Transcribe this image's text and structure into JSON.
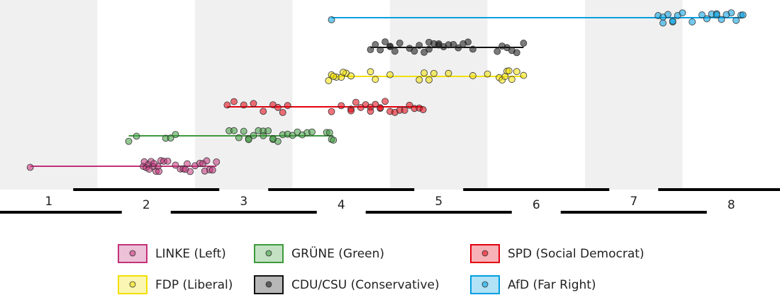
{
  "chart_data": {
    "type": "beeswarm",
    "xlim": [
      0.5,
      8.5
    ],
    "xticks": [
      1,
      2,
      3,
      4,
      5,
      6,
      7,
      8
    ],
    "series": [
      {
        "name": "LINKE (Left)",
        "color": "#c2317a",
        "values": [
          0.81,
          1.97,
          2.0,
          2.02,
          2.05,
          2.07,
          2.1,
          2.12,
          2.15,
          2.18,
          2.22,
          2.3,
          2.35,
          2.38,
          2.42,
          2.45,
          2.5,
          2.55,
          2.58,
          2.62,
          2.65,
          2.68,
          2.72,
          1.98,
          2.03,
          2.08,
          2.13,
          2.4,
          2.6
        ]
      },
      {
        "name": "GRÜNE (Green)",
        "color": "#3c9a3c",
        "values": [
          1.82,
          1.9,
          2.2,
          2.25,
          2.3,
          2.85,
          2.9,
          2.95,
          3.0,
          3.05,
          3.1,
          3.15,
          3.2,
          3.25,
          3.3,
          3.35,
          3.4,
          3.45,
          3.5,
          3.55,
          3.6,
          3.65,
          3.7,
          3.85,
          3.88,
          3.9,
          3.92,
          3.05,
          3.2,
          3.3
        ]
      },
      {
        "name": "SPD (Social Democrat)",
        "color": "#e3000f",
        "values": [
          2.83,
          2.9,
          3.0,
          3.1,
          3.2,
          3.3,
          3.35,
          3.4,
          3.45,
          3.9,
          4.0,
          4.1,
          4.15,
          4.2,
          4.25,
          4.3,
          4.35,
          4.4,
          4.45,
          4.5,
          4.55,
          4.6,
          4.65,
          4.7,
          4.75,
          4.8,
          4.84,
          4.1,
          4.3,
          4.4
        ]
      },
      {
        "name": "FDP (Liberal)",
        "color": "#f2e000",
        "values": [
          3.87,
          3.9,
          3.95,
          4.0,
          4.05,
          4.1,
          4.3,
          4.35,
          4.5,
          4.8,
          4.85,
          4.9,
          4.95,
          5.1,
          5.35,
          5.5,
          5.62,
          5.65,
          5.7,
          5.75,
          5.8,
          5.87,
          3.92,
          4.02,
          5.68,
          5.72
        ]
      },
      {
        "name": "CDU/CSU (Conservative)",
        "color": "#111111",
        "values": [
          4.3,
          4.35,
          4.4,
          4.45,
          4.5,
          4.55,
          4.6,
          4.7,
          4.75,
          4.8,
          4.85,
          4.9,
          4.95,
          5.0,
          5.05,
          5.1,
          5.15,
          5.2,
          5.25,
          5.3,
          5.35,
          5.6,
          5.65,
          5.7,
          5.75,
          5.8,
          5.87,
          4.5,
          4.9,
          5.0
        ]
      },
      {
        "name": "AfD (Far Right)",
        "color": "#009ee0",
        "values": [
          3.9,
          7.25,
          7.3,
          7.35,
          7.4,
          7.45,
          7.5,
          7.6,
          7.7,
          7.75,
          7.8,
          7.85,
          7.9,
          8.0,
          8.05,
          8.1,
          8.12,
          7.3,
          7.4,
          7.85,
          7.95
        ]
      }
    ]
  }
}
